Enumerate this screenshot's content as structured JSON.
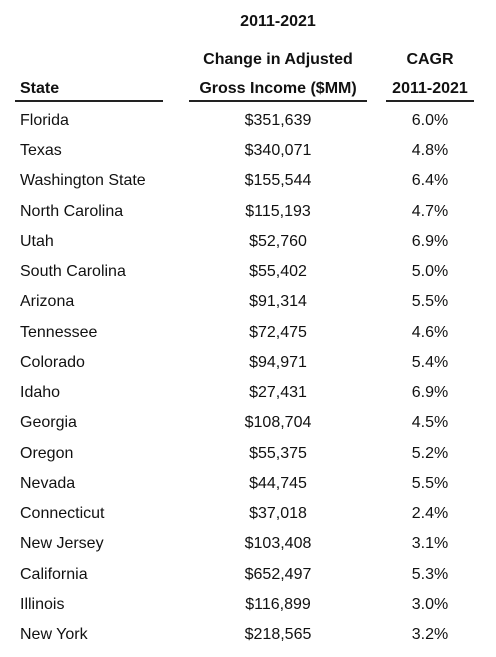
{
  "header": {
    "columns": [
      {
        "lines": [
          "State"
        ]
      },
      {
        "lines": [
          "2011-2021",
          "Change in Adjusted",
          "Gross Income ($MM)"
        ]
      },
      {
        "lines": [
          "CAGR",
          "2011-2021"
        ]
      }
    ]
  },
  "table": {
    "rows": [
      [
        "Florida",
        "$351,639",
        "6.0%"
      ],
      [
        "Texas",
        "$340,071",
        "4.8%"
      ],
      [
        "Washington State",
        "$155,544",
        "6.4%"
      ],
      [
        "North Carolina",
        "$115,193",
        "4.7%"
      ],
      [
        "Utah",
        "$52,760",
        "6.9%"
      ],
      [
        "South Carolina",
        "$55,402",
        "5.0%"
      ],
      [
        "Arizona",
        "$91,314",
        "5.5%"
      ],
      [
        "Tennessee",
        "$72,475",
        "4.6%"
      ],
      [
        "Colorado",
        "$94,971",
        "5.4%"
      ],
      [
        "Idaho",
        "$27,431",
        "6.9%"
      ],
      [
        "Georgia",
        "$108,704",
        "4.5%"
      ],
      [
        "Oregon",
        "$55,375",
        "5.2%"
      ],
      [
        "Nevada",
        "$44,745",
        "5.5%"
      ],
      [
        "Connecticut",
        "$37,018",
        "2.4%"
      ],
      [
        "New Jersey",
        "$103,408",
        "3.1%"
      ],
      [
        "California",
        "$652,497",
        "5.3%"
      ],
      [
        "Illinois",
        "$116,899",
        "3.0%"
      ],
      [
        "New York",
        "$218,565",
        "3.2%"
      ]
    ]
  }
}
